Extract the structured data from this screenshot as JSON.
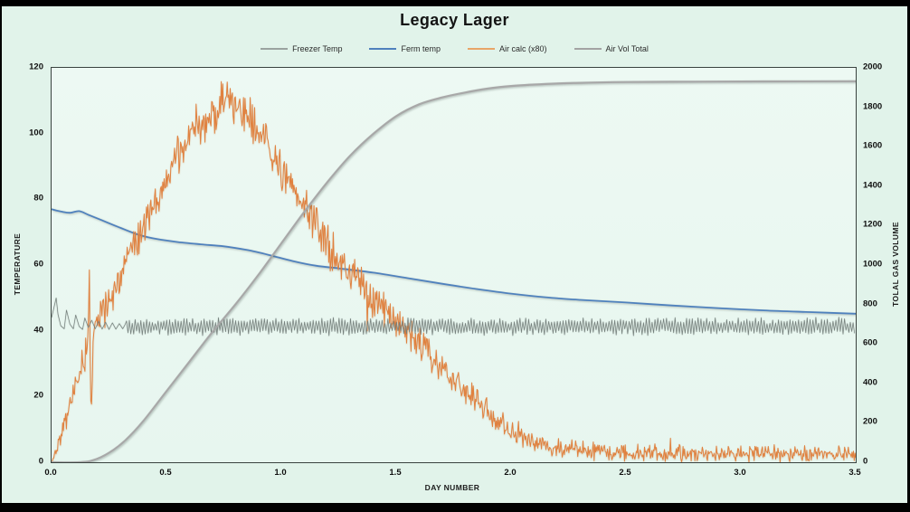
{
  "chart_data": {
    "type": "line",
    "title": "Legacy Lager",
    "xlabel": "DAY NUMBER",
    "ylabel_left": "TEMPERATURE",
    "ylabel_right": "TOLAL GAS VOLUME",
    "xlim": [
      0,
      3.5
    ],
    "ylim_left": [
      0,
      120
    ],
    "ylim_right": [
      0,
      2000
    ],
    "x_ticks": [
      "0.0",
      "0.5",
      "1.0",
      "1.5",
      "2.0",
      "2.5",
      "3.0",
      "3.5"
    ],
    "y_left_ticks": [
      "0",
      "20",
      "40",
      "60",
      "80",
      "100",
      "120"
    ],
    "y_right_ticks": [
      "0",
      "200",
      "400",
      "600",
      "800",
      "1000",
      "1200",
      "1400",
      "1600",
      "1800",
      "2000"
    ],
    "grid": false,
    "legend_position": "top-center",
    "series": [
      {
        "name": "Freezer Temp",
        "axis": "left",
        "color": "#76817d",
        "legend_color": "#9aa3a0",
        "width": 0.7,
        "z": 3,
        "style": "sawtooth-band",
        "shadow": "sh-thin",
        "head_points": [
          [
            0,
            44
          ],
          [
            0.012,
            47.5
          ],
          [
            0.02,
            50
          ],
          [
            0.028,
            45
          ],
          [
            0.04,
            41.5
          ],
          [
            0.055,
            40.6
          ],
          [
            0.065,
            46.3
          ],
          [
            0.08,
            42.0
          ],
          [
            0.095,
            40.6
          ],
          [
            0.105,
            44.8
          ],
          [
            0.12,
            41.3
          ],
          [
            0.135,
            40.4
          ],
          [
            0.145,
            43.9
          ],
          [
            0.16,
            41.0
          ],
          [
            0.175,
            43.2
          ],
          [
            0.19,
            40.6
          ],
          [
            0.205,
            42.9
          ],
          [
            0.22,
            40.5
          ],
          [
            0.235,
            42.6
          ],
          [
            0.25,
            40.4
          ],
          [
            0.265,
            42.4
          ],
          [
            0.28,
            40.5
          ],
          [
            0.295,
            42.2
          ],
          [
            0.31,
            40.6
          ],
          [
            0.32,
            41.9
          ]
        ],
        "band": {
          "from": 0.32,
          "to": 3.5,
          "center": 41.3,
          "amplitude": 2.4,
          "cycles_per_day": 80,
          "jitter": 0.6
        },
        "seed": 101
      },
      {
        "name": "Ferm temp",
        "axis": "left",
        "color": "#4f81bd",
        "legend_color": "#4f81bd",
        "width": 1.8,
        "z": 1,
        "style": "smooth",
        "shadow": "sh-blue",
        "points": [
          [
            0,
            77
          ],
          [
            0.04,
            76.3
          ],
          [
            0.08,
            75.9
          ],
          [
            0.12,
            76.4
          ],
          [
            0.16,
            75.3
          ],
          [
            0.22,
            73.6
          ],
          [
            0.3,
            71.3
          ],
          [
            0.38,
            69.2
          ],
          [
            0.46,
            67.9
          ],
          [
            0.55,
            67.0
          ],
          [
            0.65,
            66.3
          ],
          [
            0.75,
            65.7
          ],
          [
            0.85,
            64.6
          ],
          [
            0.95,
            63.0
          ],
          [
            1.05,
            61.2
          ],
          [
            1.15,
            59.8
          ],
          [
            1.25,
            59.0
          ],
          [
            1.4,
            57.7
          ],
          [
            1.55,
            56.0
          ],
          [
            1.7,
            54.3
          ],
          [
            1.85,
            52.7
          ],
          [
            2.0,
            51.3
          ],
          [
            2.15,
            50.2
          ],
          [
            2.3,
            49.4
          ],
          [
            2.5,
            48.6
          ],
          [
            2.7,
            47.7
          ],
          [
            2.9,
            46.9
          ],
          [
            3.1,
            46.2
          ],
          [
            3.3,
            45.7
          ],
          [
            3.5,
            45.2
          ]
        ]
      },
      {
        "name": "Air calc (x80)",
        "axis": "left",
        "color": "#e0813f",
        "legend_color": "#e8a568",
        "width": 1.0,
        "z": 2,
        "style": "noisy-envelope",
        "shadow": "sh-orange",
        "samples_per_day": 310,
        "seed": 42,
        "spike_chance": 0.025,
        "spike_gain": 2.2,
        "envelope": [
          [
            0,
            0
          ],
          [
            0.02,
            4
          ],
          [
            0.05,
            11
          ],
          [
            0.08,
            17
          ],
          [
            0.11,
            24
          ],
          [
            0.14,
            31
          ],
          [
            0.16,
            38
          ],
          [
            0.165,
            58
          ],
          [
            0.172,
            12
          ],
          [
            0.18,
            38
          ],
          [
            0.2,
            42
          ],
          [
            0.24,
            48
          ],
          [
            0.28,
            54
          ],
          [
            0.33,
            61
          ],
          [
            0.38,
            69
          ],
          [
            0.44,
            78
          ],
          [
            0.5,
            86
          ],
          [
            0.56,
            94
          ],
          [
            0.6,
            99
          ],
          [
            0.63,
            103
          ],
          [
            0.66,
            101
          ],
          [
            0.7,
            106
          ],
          [
            0.74,
            110
          ],
          [
            0.78,
            110
          ],
          [
            0.82,
            107
          ],
          [
            0.86,
            104
          ],
          [
            0.9,
            100
          ],
          [
            0.95,
            95
          ],
          [
            1.0,
            89
          ],
          [
            1.05,
            83
          ],
          [
            1.1,
            78
          ],
          [
            1.15,
            72
          ],
          [
            1.2,
            66
          ],
          [
            1.27,
            60
          ],
          [
            1.33,
            56
          ],
          [
            1.4,
            50
          ],
          [
            1.47,
            45
          ],
          [
            1.54,
            41
          ],
          [
            1.6,
            36
          ],
          [
            1.68,
            30
          ],
          [
            1.76,
            24
          ],
          [
            1.84,
            19
          ],
          [
            1.92,
            14
          ],
          [
            2.0,
            10
          ],
          [
            2.08,
            7
          ],
          [
            2.16,
            5
          ],
          [
            2.25,
            4
          ],
          [
            2.4,
            3.2
          ],
          [
            2.6,
            2.8
          ],
          [
            2.9,
            2.6
          ],
          [
            3.2,
            2.5
          ],
          [
            3.5,
            2.3
          ]
        ],
        "amplitude_profile": [
          [
            0,
            1.5
          ],
          [
            0.05,
            4
          ],
          [
            0.1,
            5
          ],
          [
            0.15,
            7
          ],
          [
            0.165,
            16
          ],
          [
            0.18,
            7
          ],
          [
            0.3,
            6
          ],
          [
            0.5,
            7
          ],
          [
            0.7,
            7.5
          ],
          [
            0.85,
            7
          ],
          [
            1.0,
            7
          ],
          [
            1.2,
            7.5
          ],
          [
            1.4,
            7
          ],
          [
            1.6,
            6
          ],
          [
            1.8,
            5
          ],
          [
            2.0,
            4
          ],
          [
            2.2,
            3.5
          ],
          [
            2.6,
            3
          ],
          [
            3.0,
            3
          ],
          [
            3.5,
            3
          ]
        ]
      },
      {
        "name": "Air Vol Total",
        "axis": "right",
        "color": "#a8a8a8",
        "legend_color": "#a3a3a3",
        "width": 2.2,
        "z": 4,
        "style": "smooth",
        "shadow": "sh-gray",
        "points": [
          [
            0,
            0
          ],
          [
            0.12,
            0
          ],
          [
            0.18,
            10
          ],
          [
            0.25,
            48
          ],
          [
            0.32,
            110
          ],
          [
            0.4,
            210
          ],
          [
            0.5,
            360
          ],
          [
            0.6,
            510
          ],
          [
            0.7,
            660
          ],
          [
            0.8,
            800
          ],
          [
            0.9,
            950
          ],
          [
            1.0,
            1110
          ],
          [
            1.1,
            1270
          ],
          [
            1.2,
            1420
          ],
          [
            1.3,
            1555
          ],
          [
            1.4,
            1665
          ],
          [
            1.5,
            1755
          ],
          [
            1.6,
            1815
          ],
          [
            1.7,
            1850
          ],
          [
            1.8,
            1875
          ],
          [
            1.9,
            1895
          ],
          [
            2.0,
            1908
          ],
          [
            2.15,
            1918
          ],
          [
            2.3,
            1924
          ],
          [
            2.5,
            1928
          ],
          [
            2.8,
            1930
          ],
          [
            3.1,
            1931
          ],
          [
            3.5,
            1932
          ]
        ]
      }
    ]
  }
}
